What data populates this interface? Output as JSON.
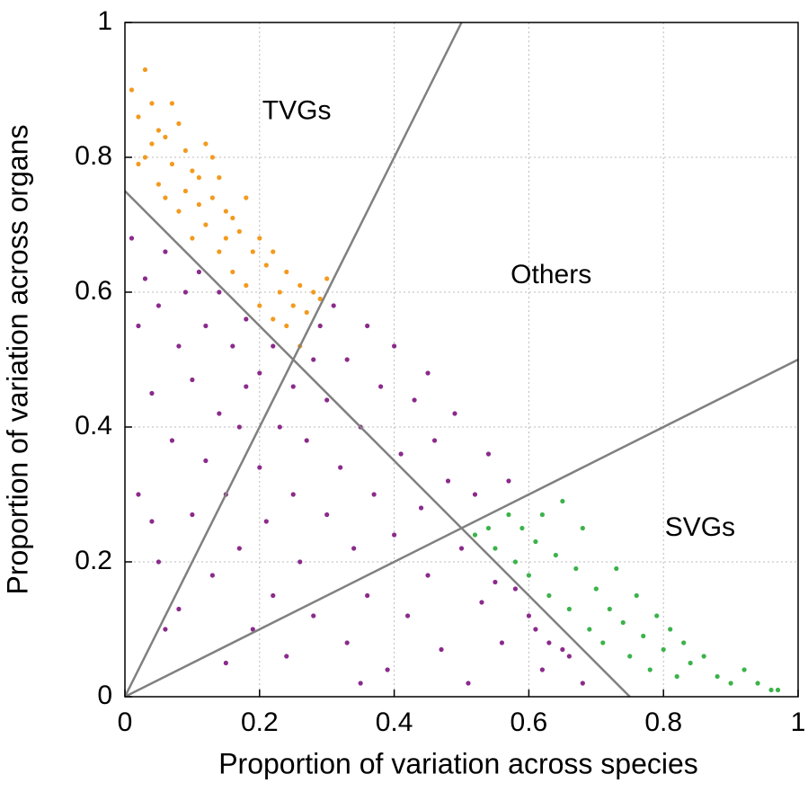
{
  "chart_data": {
    "type": "scatter",
    "xlabel": "Proportion of variation across species",
    "ylabel": "Proportion of variation across organs",
    "xlim": [
      0,
      1
    ],
    "ylim": [
      0,
      1
    ],
    "xticks": [
      0,
      0.2,
      0.4,
      0.6,
      0.8,
      1
    ],
    "yticks": [
      0,
      0.2,
      0.4,
      0.6,
      0.8,
      1
    ],
    "grid": true,
    "series": [
      {
        "color": "#f39a1e",
        "x": [
          0.01,
          0.02,
          0.03,
          0.04,
          0.05,
          0.06,
          0.07,
          0.08,
          0.09,
          0.1,
          0.11,
          0.12,
          0.13,
          0.14,
          0.15,
          0.16,
          0.17,
          0.18,
          0.19,
          0.2,
          0.21,
          0.22,
          0.23,
          0.24,
          0.25,
          0.26,
          0.27,
          0.28,
          0.29,
          0.3,
          0.02,
          0.04,
          0.06,
          0.08,
          0.1,
          0.12,
          0.14,
          0.16,
          0.18,
          0.2,
          0.22,
          0.24,
          0.26,
          0.03,
          0.05,
          0.07,
          0.09,
          0.11,
          0.13,
          0.15
        ],
        "values": [
          0.9,
          0.86,
          0.8,
          0.88,
          0.76,
          0.83,
          0.79,
          0.72,
          0.81,
          0.68,
          0.77,
          0.7,
          0.74,
          0.66,
          0.72,
          0.63,
          0.69,
          0.61,
          0.66,
          0.58,
          0.64,
          0.56,
          0.6,
          0.55,
          0.58,
          0.52,
          0.57,
          0.6,
          0.59,
          0.62,
          0.79,
          0.82,
          0.74,
          0.85,
          0.78,
          0.82,
          0.77,
          0.71,
          0.74,
          0.68,
          0.66,
          0.63,
          0.61,
          0.93,
          0.84,
          0.88,
          0.75,
          0.73,
          0.8,
          0.68
        ]
      },
      {
        "color": "#8b2a8c",
        "x": [
          0.01,
          0.02,
          0.02,
          0.03,
          0.04,
          0.05,
          0.05,
          0.06,
          0.07,
          0.08,
          0.08,
          0.09,
          0.1,
          0.1,
          0.11,
          0.12,
          0.12,
          0.13,
          0.14,
          0.14,
          0.15,
          0.16,
          0.17,
          0.17,
          0.18,
          0.19,
          0.2,
          0.2,
          0.21,
          0.22,
          0.22,
          0.23,
          0.24,
          0.25,
          0.25,
          0.26,
          0.27,
          0.28,
          0.28,
          0.29,
          0.3,
          0.3,
          0.31,
          0.32,
          0.33,
          0.33,
          0.34,
          0.35,
          0.36,
          0.36,
          0.37,
          0.38,
          0.39,
          0.4,
          0.4,
          0.41,
          0.42,
          0.43,
          0.44,
          0.45,
          0.46,
          0.47,
          0.48,
          0.49,
          0.5,
          0.51,
          0.52,
          0.53,
          0.54,
          0.55,
          0.56,
          0.57,
          0.58,
          0.6,
          0.61,
          0.62,
          0.63,
          0.65,
          0.66,
          0.68,
          0.06,
          0.15,
          0.35,
          0.45,
          0.04,
          0.18
        ],
        "values": [
          0.68,
          0.55,
          0.3,
          0.62,
          0.45,
          0.2,
          0.58,
          0.66,
          0.38,
          0.52,
          0.13,
          0.6,
          0.27,
          0.47,
          0.63,
          0.35,
          0.55,
          0.18,
          0.42,
          0.6,
          0.3,
          0.52,
          0.22,
          0.4,
          0.56,
          0.1,
          0.34,
          0.48,
          0.26,
          0.52,
          0.15,
          0.4,
          0.06,
          0.3,
          0.46,
          0.2,
          0.38,
          0.5,
          0.12,
          0.55,
          0.27,
          0.44,
          0.58,
          0.34,
          0.08,
          0.5,
          0.22,
          0.4,
          0.55,
          0.15,
          0.3,
          0.46,
          0.04,
          0.24,
          0.52,
          0.36,
          0.12,
          0.44,
          0.28,
          0.18,
          0.38,
          0.07,
          0.32,
          0.42,
          0.22,
          0.02,
          0.3,
          0.14,
          0.36,
          0.17,
          0.08,
          0.32,
          0.16,
          0.12,
          0.1,
          0.04,
          0.08,
          0.07,
          0.06,
          0.02,
          0.1,
          0.05,
          0.02,
          0.48,
          0.26,
          0.46
        ]
      },
      {
        "color": "#3bb34a",
        "x": [
          0.52,
          0.54,
          0.55,
          0.57,
          0.58,
          0.59,
          0.6,
          0.61,
          0.62,
          0.63,
          0.64,
          0.65,
          0.66,
          0.67,
          0.68,
          0.69,
          0.7,
          0.71,
          0.72,
          0.73,
          0.74,
          0.75,
          0.76,
          0.77,
          0.78,
          0.79,
          0.8,
          0.81,
          0.82,
          0.83,
          0.84,
          0.86,
          0.88,
          0.9,
          0.92,
          0.94,
          0.96,
          0.97
        ],
        "values": [
          0.24,
          0.25,
          0.22,
          0.27,
          0.2,
          0.25,
          0.18,
          0.23,
          0.27,
          0.15,
          0.21,
          0.29,
          0.13,
          0.19,
          0.25,
          0.1,
          0.16,
          0.08,
          0.13,
          0.19,
          0.11,
          0.06,
          0.15,
          0.09,
          0.04,
          0.12,
          0.07,
          0.1,
          0.03,
          0.08,
          0.05,
          0.06,
          0.03,
          0.02,
          0.04,
          0.02,
          0.01,
          0.01
        ]
      }
    ],
    "lines": [
      {
        "x": [
          0,
          0.75
        ],
        "y": [
          0.75,
          0
        ]
      },
      {
        "x": [
          0,
          0.5
        ],
        "y": [
          0,
          1
        ]
      },
      {
        "x": [
          0,
          1
        ],
        "y": [
          0,
          0.5
        ]
      }
    ],
    "line_color": "#808080",
    "annotations": [
      {
        "text": "TVGs",
        "x": 0.204,
        "y": 0.867
      },
      {
        "text": "Others",
        "x": 0.573,
        "y": 0.624
      },
      {
        "text": "SVGs",
        "x": 0.802,
        "y": 0.249
      }
    ]
  }
}
